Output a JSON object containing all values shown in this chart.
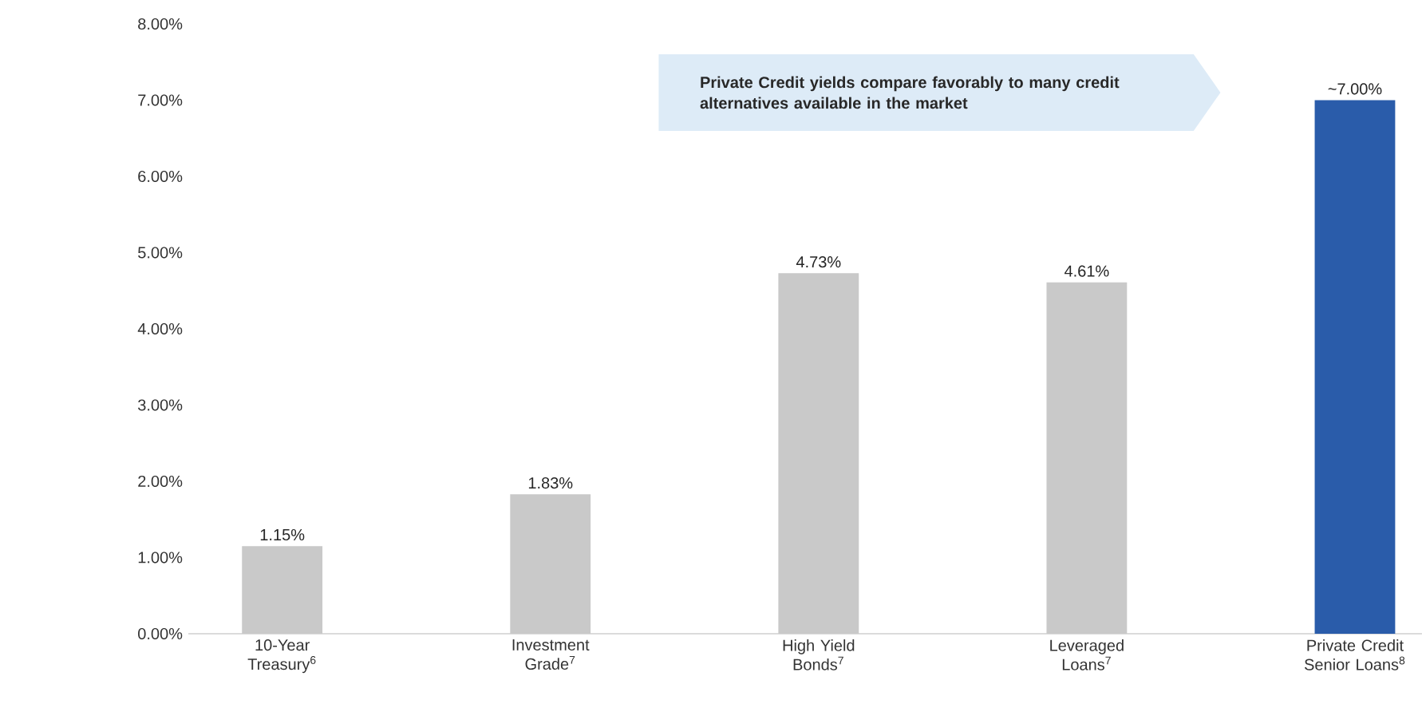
{
  "chart_data": {
    "type": "bar",
    "categories": [
      "10-Year Treasury$^{6}$",
      "Investment Grade$^{7}$",
      "High Yield Bonds$^{7}$",
      "Leveraged Loans$^{7}$",
      "Private Credit Senior Loans$^{8}$"
    ],
    "values": [
      1.15,
      1.83,
      4.73,
      4.61,
      7.0
    ],
    "colors": [
      "#c9c9c9",
      "#c9c9c9",
      "#c9c9c9",
      "#c9c9c9",
      "#2a5caa"
    ],
    "value_labels": [
      "1.15%",
      "1.83%",
      "4.73%",
      "4.61%",
      "~7.00%"
    ],
    "ylim": [
      0,
      8
    ],
    "yticks": [
      {
        "value": 0,
        "label": "0.00%"
      },
      {
        "value": 1,
        "label": "1.00%"
      },
      {
        "value": 2,
        "label": "2.00%"
      },
      {
        "value": 3,
        "label": "3.00%"
      },
      {
        "value": 4,
        "label": "4.00%"
      },
      {
        "value": 5,
        "label": "5.00%"
      },
      {
        "value": 6,
        "label": "6.00%"
      },
      {
        "value": 7,
        "label": "7.00%"
      },
      {
        "value": 8,
        "label": "8.00%"
      }
    ],
    "annotations": [
      "Private Credit yields compare favorably to many credit alternatives available in the market"
    ]
  }
}
